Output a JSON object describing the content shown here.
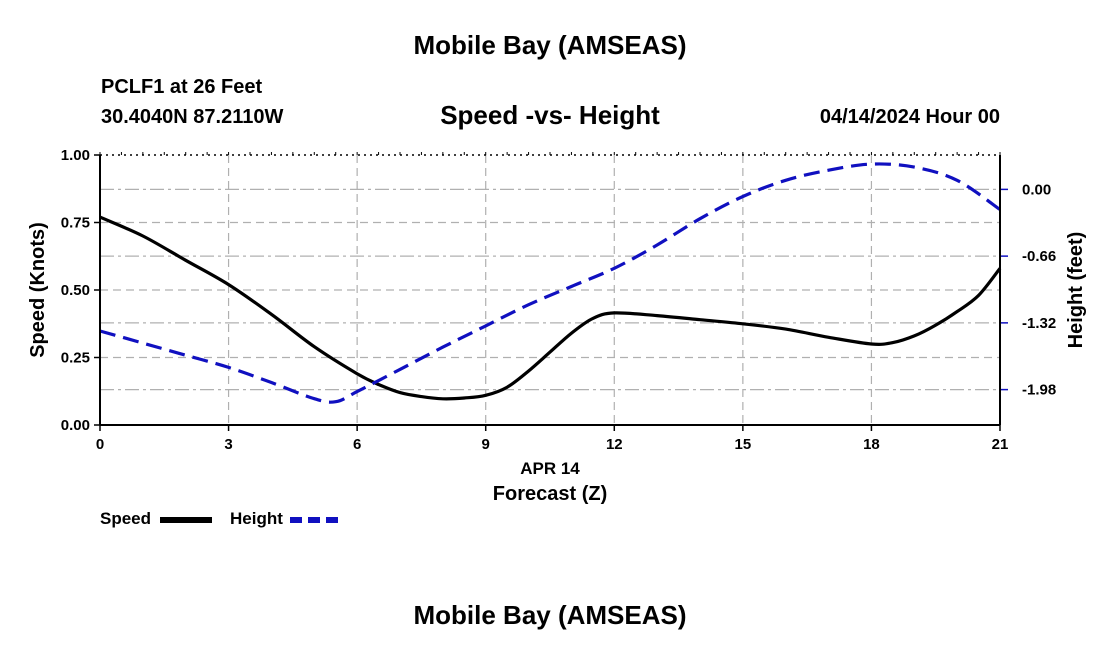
{
  "header": {
    "title": "Mobile Bay (AMSEAS)",
    "station": "PCLF1 at 26 Feet",
    "coordinates": "30.4040N  87.2110W",
    "subtitle": "Speed -vs- Height",
    "run_time": "04/14/2024 Hour 00"
  },
  "footer": {
    "title": "Mobile Bay (AMSEAS)"
  },
  "legend": {
    "speed_label": "Speed",
    "height_label": "Height"
  },
  "colors": {
    "speed": "#000000",
    "height": "#1010c0",
    "grid": "#b0b0b0"
  },
  "chart_data": {
    "type": "line",
    "title": "Speed -vs- Height",
    "xlabel": "Forecast (Z)",
    "xlabel_date": "APR 14",
    "ylabel": "Speed (Knots)",
    "y2label": "Height (feet)",
    "xlim": [
      0,
      21
    ],
    "ylim": [
      0,
      1
    ],
    "y2lim": [
      -2.33,
      0.34
    ],
    "x_ticks": [
      0,
      3,
      6,
      9,
      12,
      15,
      18,
      21
    ],
    "y_ticks": [
      "0.00",
      "0.25",
      "0.50",
      "0.75",
      "1.00"
    ],
    "y2_ticks": [
      "0.00",
      "-0.66",
      "-1.32",
      "-1.98"
    ],
    "grid": true,
    "legend_position": "bottom-left",
    "series": [
      {
        "name": "Speed",
        "axis": "left",
        "style": "solid",
        "x": [
          0,
          1,
          2,
          3,
          4,
          5,
          6,
          6.5,
          7,
          7.5,
          8,
          8.5,
          9,
          9.5,
          10,
          10.5,
          11,
          11.5,
          12,
          13,
          14,
          15,
          16,
          17,
          18,
          18.5,
          19,
          19.5,
          20,
          20.5,
          21
        ],
        "values": [
          0.77,
          0.7,
          0.61,
          0.52,
          0.41,
          0.29,
          0.19,
          0.15,
          0.12,
          0.105,
          0.097,
          0.1,
          0.11,
          0.14,
          0.2,
          0.27,
          0.34,
          0.395,
          0.415,
          0.405,
          0.39,
          0.375,
          0.355,
          0.325,
          0.3,
          0.305,
          0.33,
          0.37,
          0.42,
          0.48,
          0.58
        ]
      },
      {
        "name": "Height",
        "axis": "right",
        "style": "dashed",
        "x": [
          0,
          1,
          2,
          3,
          4,
          5,
          5.5,
          6,
          7,
          8,
          9,
          10,
          11,
          12,
          13,
          14,
          15,
          16,
          17,
          18,
          19,
          20,
          21
        ],
        "values": [
          -1.4,
          -1.52,
          -1.64,
          -1.76,
          -1.91,
          -2.07,
          -2.1,
          -2.0,
          -1.78,
          -1.56,
          -1.35,
          -1.14,
          -0.96,
          -0.78,
          -0.55,
          -0.29,
          -0.07,
          0.09,
          0.19,
          0.25,
          0.22,
          0.09,
          -0.2
        ]
      }
    ]
  }
}
